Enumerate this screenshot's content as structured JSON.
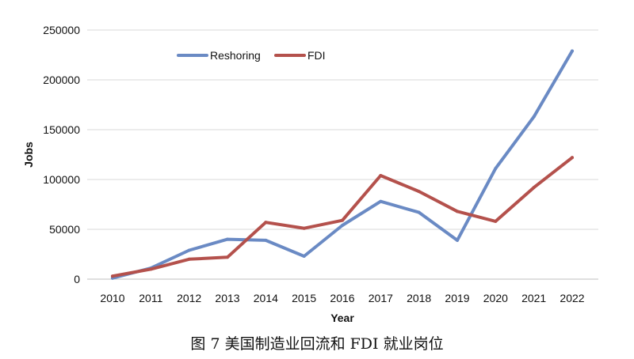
{
  "chart_data": {
    "type": "line",
    "title": "",
    "xlabel": "Year",
    "ylabel": "Jobs",
    "x": [
      "2010",
      "2011",
      "2012",
      "2013",
      "2014",
      "2015",
      "2016",
      "2017",
      "2018",
      "2019",
      "2020",
      "2021",
      "2022"
    ],
    "ylim": [
      0,
      250000
    ],
    "yticks": [
      "0",
      "50000",
      "100000",
      "150000",
      "200000",
      "250000"
    ],
    "series": [
      {
        "name": "Reshoring",
        "color": "#6a8ac4",
        "values": [
          1000,
          11000,
          29000,
          40000,
          39000,
          23000,
          54000,
          78000,
          67000,
          39000,
          111000,
          163000,
          229000
        ]
      },
      {
        "name": "FDI",
        "color": "#b4514c",
        "values": [
          3000,
          10000,
          20000,
          22000,
          57000,
          51000,
          59000,
          104000,
          88000,
          68000,
          58000,
          92000,
          122000
        ]
      }
    ],
    "grid": true,
    "legend": "top-left"
  },
  "caption": "图 7 美国制造业回流和 FDI 就业岗位"
}
